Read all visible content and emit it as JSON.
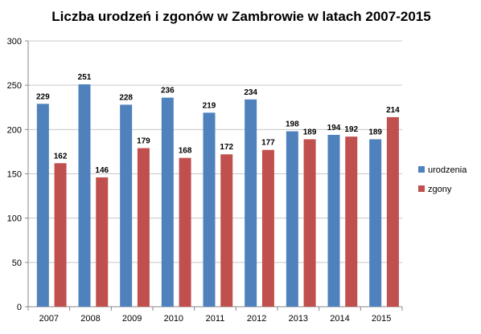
{
  "chart_data": {
    "type": "bar",
    "title": "Liczba urodzeń i zgonów w Zambrowie w latach 2007-2015",
    "xlabel": "",
    "ylabel": "",
    "categories": [
      "2007",
      "2008",
      "2009",
      "2010",
      "2011",
      "2012",
      "2013",
      "2014",
      "2015"
    ],
    "series": [
      {
        "name": "urodzenia",
        "color": "#4f81bd",
        "values": [
          229,
          251,
          228,
          236,
          219,
          234,
          198,
          194,
          189
        ]
      },
      {
        "name": "zgony",
        "color": "#c0504d",
        "values": [
          162,
          146,
          179,
          168,
          172,
          177,
          189,
          192,
          214
        ]
      }
    ],
    "ylim": [
      0,
      300
    ],
    "yticks": [
      0,
      50,
      100,
      150,
      200,
      250,
      300
    ],
    "grid": true,
    "legend": "right",
    "data_labels": true
  }
}
